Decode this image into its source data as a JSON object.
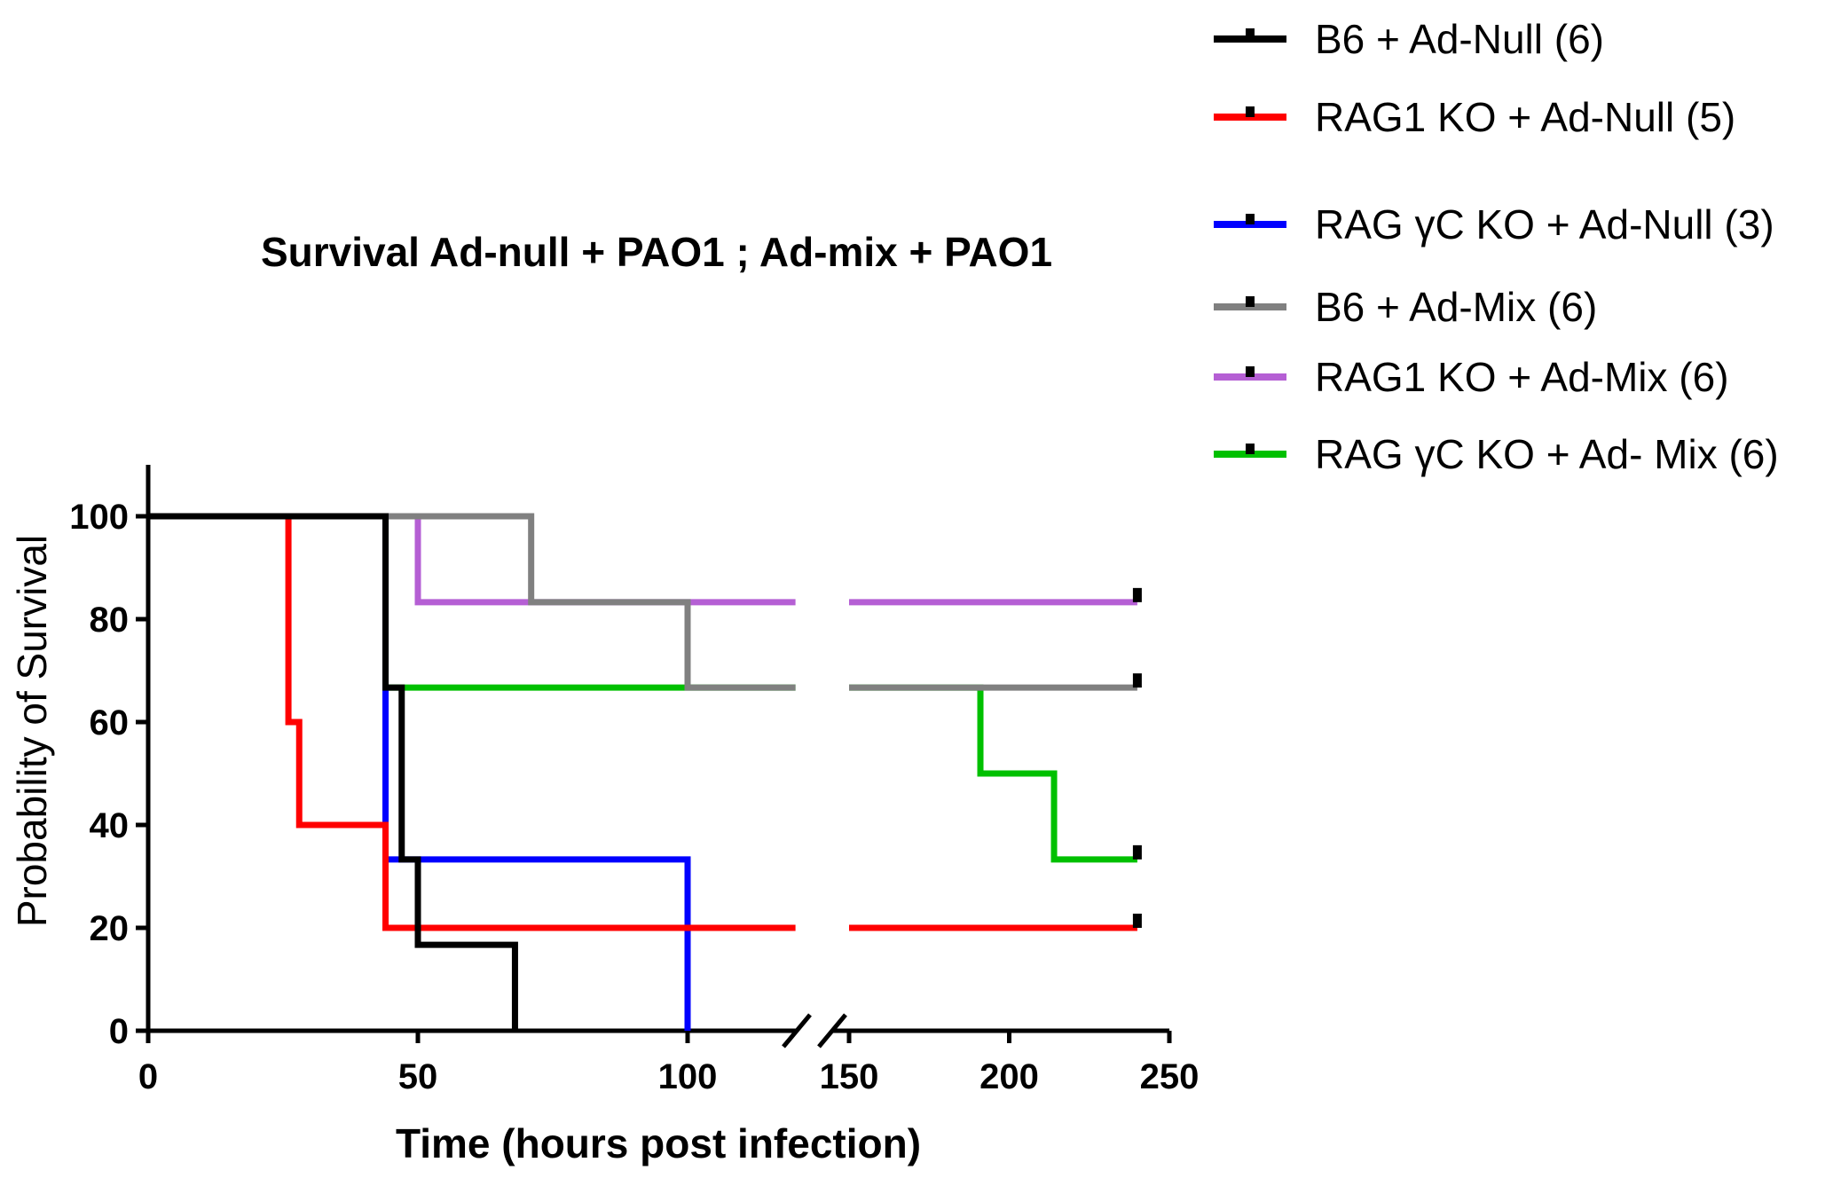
{
  "chart_data": {
    "type": "line",
    "subtype": "kaplan-meier-survival",
    "title": "Survival Ad-null + PAO1 ;  Ad-mix + PAO1",
    "xlabel": "Time (hours post infection)",
    "ylabel": "Probability of Survival",
    "xlim": [
      0,
      250
    ],
    "ylim": [
      0,
      110
    ],
    "x_axis_break": [
      128,
      140
    ],
    "x_segments": [
      [
        0,
        120
      ],
      [
        150,
        250
      ]
    ],
    "x_ticks": [
      0,
      50,
      100,
      150,
      200,
      250
    ],
    "y_ticks": [
      0,
      20,
      40,
      60,
      80,
      100
    ],
    "legend_position": "top-right",
    "series": [
      {
        "name": "B6 + Ad-Null (6)",
        "color": "#000000",
        "steps": [
          [
            0,
            100
          ],
          [
            44,
            100
          ],
          [
            44,
            66.7
          ],
          [
            47,
            66.7
          ],
          [
            47,
            33.3
          ],
          [
            50,
            33.3
          ],
          [
            50,
            16.7
          ],
          [
            68,
            16.7
          ],
          [
            68,
            0
          ]
        ],
        "censor": []
      },
      {
        "name": "RAG1 KO + Ad-Null (5)",
        "color": "#ff0000",
        "steps": [
          [
            0,
            100
          ],
          [
            26,
            100
          ],
          [
            26,
            60
          ],
          [
            28,
            60
          ],
          [
            28,
            40
          ],
          [
            44,
            40
          ],
          [
            44,
            20
          ],
          [
            240,
            20
          ]
        ],
        "censor": [
          [
            240,
            20
          ]
        ]
      },
      {
        "name": "RAG γC KO + Ad-Null (3)",
        "color": "#0000ff",
        "steps": [
          [
            0,
            100
          ],
          [
            44,
            100
          ],
          [
            44,
            66.7
          ],
          [
            44,
            33.3
          ],
          [
            100,
            33.3
          ],
          [
            100,
            0
          ]
        ],
        "censor": []
      },
      {
        "name": "B6 + Ad-Mix (6)",
        "color": "#808080",
        "steps": [
          [
            0,
            100
          ],
          [
            71,
            100
          ],
          [
            71,
            83.3
          ],
          [
            100,
            83.3
          ],
          [
            100,
            66.7
          ],
          [
            240,
            66.7
          ]
        ],
        "censor": [
          [
            240,
            66.7
          ]
        ]
      },
      {
        "name": "RAG1 KO + Ad-Mix (6)",
        "color": "#b55fd4",
        "steps": [
          [
            0,
            100
          ],
          [
            50,
            100
          ],
          [
            50,
            83.3
          ],
          [
            240,
            83.3
          ]
        ],
        "censor": [
          [
            240,
            83.3
          ]
        ]
      },
      {
        "name": "RAG γC KO + Ad- Mix (6)",
        "color": "#00c000",
        "steps": [
          [
            0,
            100
          ],
          [
            44,
            100
          ],
          [
            44,
            66.7
          ],
          [
            191,
            66.7
          ],
          [
            191,
            50
          ],
          [
            214,
            50
          ],
          [
            214,
            33.3
          ],
          [
            240,
            33.3
          ]
        ],
        "censor": [
          [
            240,
            33.3
          ]
        ]
      }
    ]
  }
}
